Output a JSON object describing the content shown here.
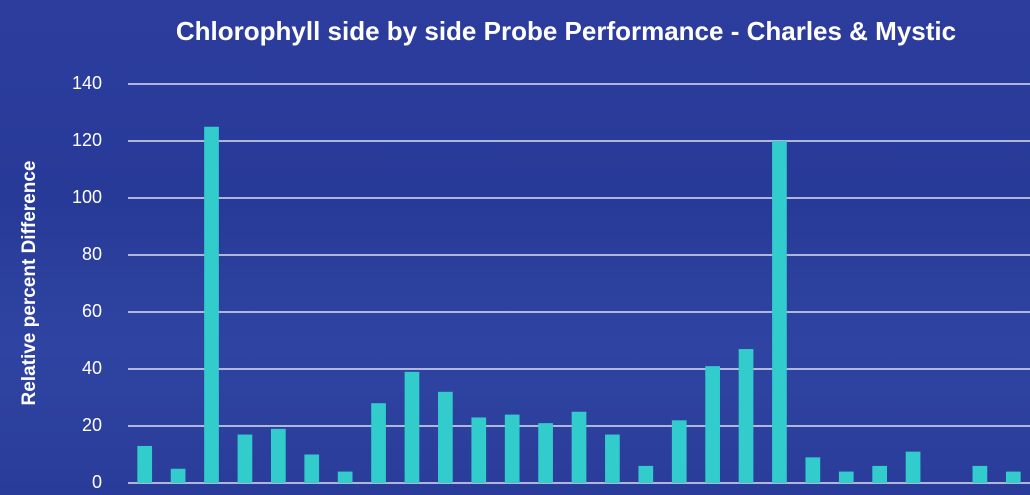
{
  "chart_data": {
    "type": "bar",
    "title": "Chlorophyll side by side Probe Performance - Charles & Mystic",
    "y_label": "Relative percent Difference",
    "categories": [
      null,
      null,
      null,
      null,
      null,
      null,
      null,
      null,
      null,
      null,
      null,
      null,
      null,
      null,
      null,
      null,
      null,
      null,
      null,
      null,
      null,
      null,
      null,
      null,
      null,
      null,
      null
    ],
    "values": [
      13,
      5,
      125,
      17,
      19,
      10,
      4,
      28,
      39,
      32,
      23,
      24,
      21,
      25,
      17,
      6,
      22,
      41,
      47,
      120,
      9,
      4,
      6,
      11,
      0,
      6,
      4
    ],
    "color": "#33cccc",
    "ylim": [
      0,
      140
    ],
    "yticks": [
      0,
      20,
      40,
      60,
      80,
      100,
      120,
      140
    ],
    "grid": true
  }
}
